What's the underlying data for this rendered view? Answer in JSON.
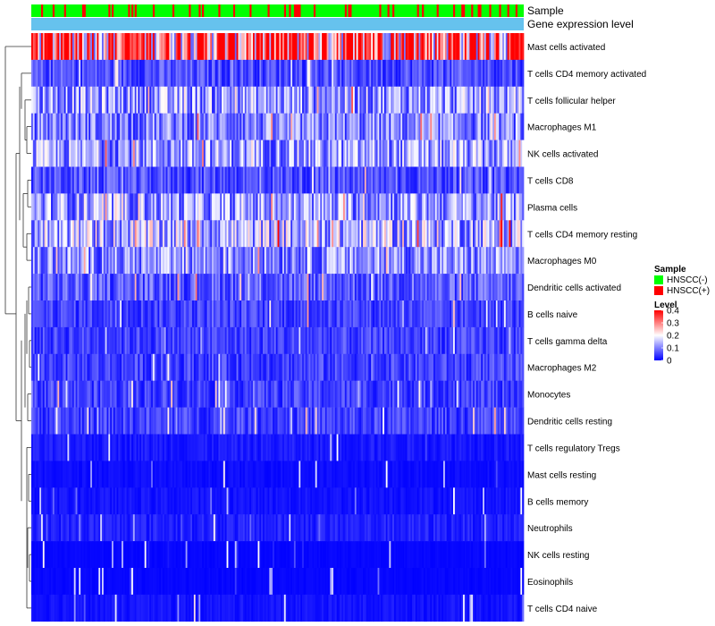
{
  "chart_data": {
    "type": "heatmap",
    "title": "",
    "annotation_rows": [
      "Sample",
      "Gene expression level"
    ],
    "row_labels": [
      "Mast cells activated",
      "T cells CD4 memory activated",
      "T cells follicular helper",
      "Macrophages M1",
      "NK cells activated",
      "T cells CD8",
      "Plasma cells",
      "T cells CD4 memory resting",
      "Macrophages M0",
      "Dendritic cells activated",
      "B cells naive",
      "T cells gamma delta",
      "Macrophages M2",
      "Monocytes",
      "Dendritic cells resting",
      "T cells regulatory  Tregs",
      "Mast cells resting",
      "B cells memory",
      "Neutrophils",
      "NK cells resting",
      "Eosinophils",
      "T cells CD4 naive"
    ],
    "row_mean_level": [
      0.34,
      0.06,
      0.12,
      0.1,
      0.12,
      0.06,
      0.12,
      0.14,
      0.11,
      0.07,
      0.05,
      0.05,
      0.05,
      0.05,
      0.05,
      0.02,
      0.01,
      0.015,
      0.025,
      0.005,
      0.005,
      0.015
    ],
    "n_samples": 300,
    "color_scale": {
      "title": "Level",
      "ticks": [
        0.4,
        0.3,
        0.2,
        0.1,
        0
      ],
      "min": 0,
      "max": 0.4,
      "low_color": "#0000ff",
      "mid_color": "#ffffff",
      "high_color": "#ff0000"
    },
    "sample_legend": {
      "title": "Sample",
      "entries": [
        {
          "label": "HNSCC(-)",
          "color": "#00ff00"
        },
        {
          "label": "HNSCC(+)",
          "color": "#ff0000"
        }
      ]
    },
    "expression_annotation_color": "#66c2ee",
    "dendrogram": "row clustering"
  }
}
